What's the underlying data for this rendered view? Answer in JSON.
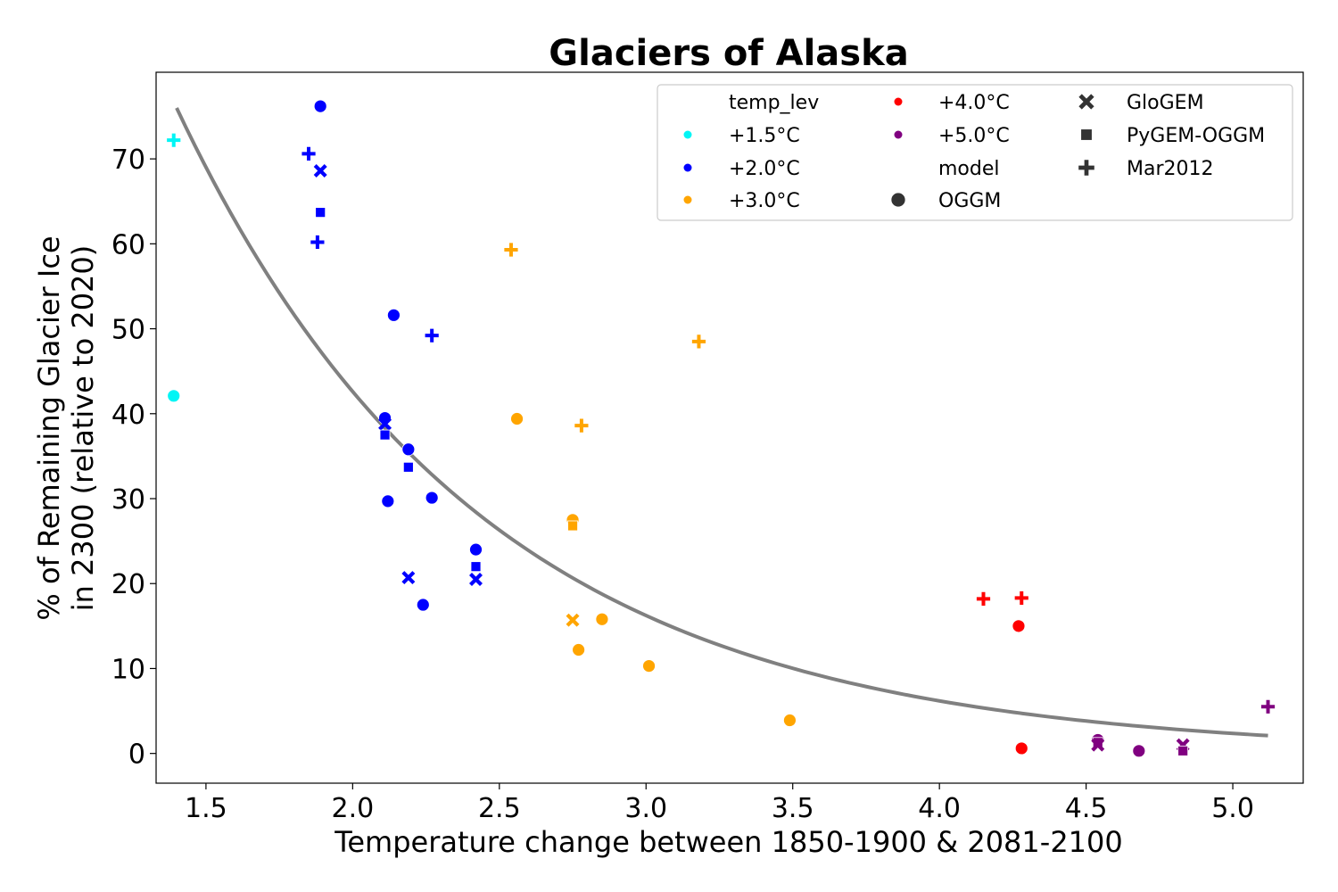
{
  "chart_data": {
    "type": "scatter",
    "title": "Glaciers of Alaska",
    "xlabel": "Temperature change between 1850-1900 & 2081-2100",
    "ylabel_lines": [
      "% of Remaining Glacier Ice",
      "in 2300 (relative to 2020)"
    ],
    "xlim": [
      1.33,
      5.24
    ],
    "ylim": [
      -3.5,
      80.2
    ],
    "xticks": [
      1.5,
      2.0,
      2.5,
      3.0,
      3.5,
      4.0,
      4.5,
      5.0
    ],
    "xtick_labels": [
      "1.5",
      "2.0",
      "2.5",
      "3.0",
      "3.5",
      "4.0",
      "4.5",
      "5.0"
    ],
    "yticks": [
      0,
      10,
      20,
      30,
      40,
      50,
      60,
      70
    ],
    "ytick_labels": [
      "0",
      "10",
      "20",
      "30",
      "40",
      "50",
      "60",
      "70"
    ],
    "grid": false,
    "legend_position": "top-right",
    "legend": [
      {
        "label": "temp_lev",
        "kind": "header"
      },
      {
        "label": "+1.5°C",
        "kind": "color",
        "color": "#00f5f5"
      },
      {
        "label": "+2.0°C",
        "kind": "color",
        "color": "#0000ff"
      },
      {
        "label": "+3.0°C",
        "kind": "color",
        "color": "#ffa500"
      },
      {
        "label": "+4.0°C",
        "kind": "color",
        "color": "#ff0000"
      },
      {
        "label": "+5.0°C",
        "kind": "color",
        "color": "#800080"
      },
      {
        "label": "model",
        "kind": "header"
      },
      {
        "label": "OGGM",
        "kind": "marker",
        "marker": "circle"
      },
      {
        "label": "GloGEM",
        "kind": "marker",
        "marker": "x"
      },
      {
        "label": "PyGEM-OGGM",
        "kind": "marker",
        "marker": "square"
      },
      {
        "label": "Mar2012",
        "kind": "marker",
        "marker": "plus"
      }
    ],
    "colors": {
      "+1.5°C": "#00f5f5",
      "+2.0°C": "#0000ff",
      "+3.0°C": "#ffa500",
      "+4.0°C": "#ff0000",
      "+5.0°C": "#800080",
      "fit_line": "#808080"
    },
    "fit_curve": {
      "type": "exponential",
      "x": [
        1.4,
        5.12
      ],
      "y_at_x0": 76.0,
      "y_at_x1": 2.1
    },
    "points": [
      {
        "x": 1.39,
        "y": 72.2,
        "temp_lev": "+1.5°C",
        "model": "Mar2012"
      },
      {
        "x": 1.39,
        "y": 42.1,
        "temp_lev": "+1.5°C",
        "model": "OGGM"
      },
      {
        "x": 1.89,
        "y": 76.2,
        "temp_lev": "+2.0°C",
        "model": "OGGM"
      },
      {
        "x": 1.85,
        "y": 70.6,
        "temp_lev": "+2.0°C",
        "model": "Mar2012"
      },
      {
        "x": 1.89,
        "y": 68.6,
        "temp_lev": "+2.0°C",
        "model": "GloGEM"
      },
      {
        "x": 1.89,
        "y": 63.7,
        "temp_lev": "+2.0°C",
        "model": "PyGEM-OGGM"
      },
      {
        "x": 1.88,
        "y": 60.2,
        "temp_lev": "+2.0°C",
        "model": "Mar2012"
      },
      {
        "x": 2.14,
        "y": 51.6,
        "temp_lev": "+2.0°C",
        "model": "OGGM"
      },
      {
        "x": 2.27,
        "y": 49.2,
        "temp_lev": "+2.0°C",
        "model": "Mar2012"
      },
      {
        "x": 2.11,
        "y": 39.5,
        "temp_lev": "+2.0°C",
        "model": "OGGM"
      },
      {
        "x": 2.11,
        "y": 38.8,
        "temp_lev": "+2.0°C",
        "model": "GloGEM"
      },
      {
        "x": 2.11,
        "y": 37.5,
        "temp_lev": "+2.0°C",
        "model": "PyGEM-OGGM"
      },
      {
        "x": 2.19,
        "y": 35.8,
        "temp_lev": "+2.0°C",
        "model": "OGGM"
      },
      {
        "x": 2.19,
        "y": 33.7,
        "temp_lev": "+2.0°C",
        "model": "PyGEM-OGGM"
      },
      {
        "x": 2.27,
        "y": 30.1,
        "temp_lev": "+2.0°C",
        "model": "OGGM"
      },
      {
        "x": 2.12,
        "y": 29.7,
        "temp_lev": "+2.0°C",
        "model": "OGGM"
      },
      {
        "x": 2.42,
        "y": 24.0,
        "temp_lev": "+2.0°C",
        "model": "OGGM"
      },
      {
        "x": 2.42,
        "y": 22.0,
        "temp_lev": "+2.0°C",
        "model": "PyGEM-OGGM"
      },
      {
        "x": 2.19,
        "y": 20.7,
        "temp_lev": "+2.0°C",
        "model": "GloGEM"
      },
      {
        "x": 2.42,
        "y": 20.5,
        "temp_lev": "+2.0°C",
        "model": "GloGEM"
      },
      {
        "x": 2.24,
        "y": 17.5,
        "temp_lev": "+2.0°C",
        "model": "OGGM"
      },
      {
        "x": 2.54,
        "y": 59.3,
        "temp_lev": "+3.0°C",
        "model": "Mar2012"
      },
      {
        "x": 3.18,
        "y": 48.5,
        "temp_lev": "+3.0°C",
        "model": "Mar2012"
      },
      {
        "x": 2.56,
        "y": 39.4,
        "temp_lev": "+3.0°C",
        "model": "OGGM"
      },
      {
        "x": 2.78,
        "y": 38.6,
        "temp_lev": "+3.0°C",
        "model": "Mar2012"
      },
      {
        "x": 2.75,
        "y": 27.5,
        "temp_lev": "+3.0°C",
        "model": "OGGM"
      },
      {
        "x": 2.75,
        "y": 26.8,
        "temp_lev": "+3.0°C",
        "model": "PyGEM-OGGM"
      },
      {
        "x": 2.75,
        "y": 15.7,
        "temp_lev": "+3.0°C",
        "model": "GloGEM"
      },
      {
        "x": 2.85,
        "y": 15.8,
        "temp_lev": "+3.0°C",
        "model": "OGGM"
      },
      {
        "x": 2.77,
        "y": 12.2,
        "temp_lev": "+3.0°C",
        "model": "OGGM"
      },
      {
        "x": 3.01,
        "y": 10.3,
        "temp_lev": "+3.0°C",
        "model": "OGGM"
      },
      {
        "x": 3.49,
        "y": 3.9,
        "temp_lev": "+3.0°C",
        "model": "OGGM"
      },
      {
        "x": 4.15,
        "y": 18.2,
        "temp_lev": "+4.0°C",
        "model": "Mar2012"
      },
      {
        "x": 4.28,
        "y": 18.3,
        "temp_lev": "+4.0°C",
        "model": "Mar2012"
      },
      {
        "x": 4.27,
        "y": 15.0,
        "temp_lev": "+4.0°C",
        "model": "OGGM"
      },
      {
        "x": 4.28,
        "y": 0.6,
        "temp_lev": "+4.0°C",
        "model": "OGGM"
      },
      {
        "x": 5.12,
        "y": 5.5,
        "temp_lev": "+5.0°C",
        "model": "Mar2012"
      },
      {
        "x": 4.54,
        "y": 1.6,
        "temp_lev": "+5.0°C",
        "model": "OGGM"
      },
      {
        "x": 4.54,
        "y": 1.3,
        "temp_lev": "+5.0°C",
        "model": "PyGEM-OGGM"
      },
      {
        "x": 4.54,
        "y": 1.0,
        "temp_lev": "+5.0°C",
        "model": "GloGEM"
      },
      {
        "x": 4.68,
        "y": 0.3,
        "temp_lev": "+5.0°C",
        "model": "OGGM"
      },
      {
        "x": 4.83,
        "y": 1.0,
        "temp_lev": "+5.0°C",
        "model": "GloGEM"
      },
      {
        "x": 4.83,
        "y": 0.3,
        "temp_lev": "+5.0°C",
        "model": "PyGEM-OGGM"
      }
    ]
  }
}
